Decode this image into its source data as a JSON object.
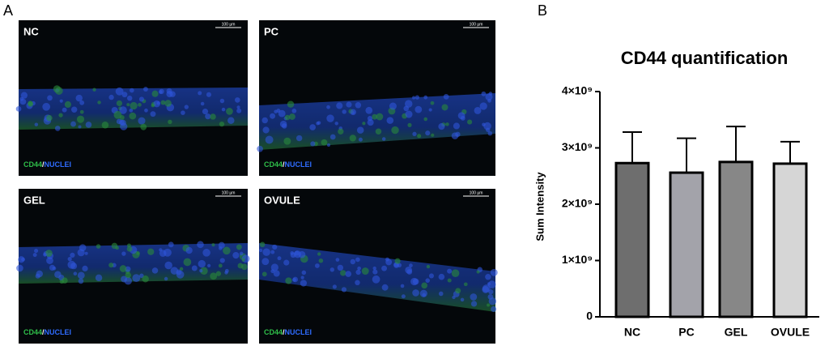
{
  "figure": {
    "panel_labels": [
      "A",
      "B"
    ],
    "images": [
      {
        "label": "NC",
        "scale_bar": "100 µm",
        "markers": [
          "CD44",
          "NUCLEI"
        ],
        "separator": "/"
      },
      {
        "label": "PC",
        "scale_bar": "100 µm",
        "markers": [
          "CD44",
          "NUCLEI"
        ],
        "separator": "/"
      },
      {
        "label": "GEL",
        "scale_bar": "100 µm",
        "markers": [
          "CD44",
          "NUCLEI"
        ],
        "separator": "/"
      },
      {
        "label": "OVULE",
        "scale_bar": "100 µm",
        "markers": [
          "CD44",
          "NUCLEI"
        ],
        "separator": "/"
      }
    ]
  },
  "chart_data": {
    "type": "bar",
    "title": "CD44 quantification",
    "y_label": "Sum Intensity",
    "categories": [
      "NC",
      "PC",
      "GEL",
      "OVULE"
    ],
    "values": [
      2730000000,
      2560000000,
      2750000000,
      2720000000
    ],
    "errors": [
      550000000,
      610000000,
      630000000,
      390000000
    ],
    "colors": [
      "#6e6e6e",
      "#a3a3aa",
      "#878787",
      "#d6d6d6"
    ],
    "ylim": [
      0,
      4000000000
    ],
    "yticks": [
      0,
      {
        "value": 1000000000,
        "label": "1×10⁹"
      },
      {
        "value": 2000000000,
        "label": "2×10⁹"
      },
      {
        "value": 3000000000,
        "label": "3×10⁹"
      },
      {
        "value": 4000000000,
        "label": "4×10⁹"
      }
    ],
    "grid": false
  }
}
